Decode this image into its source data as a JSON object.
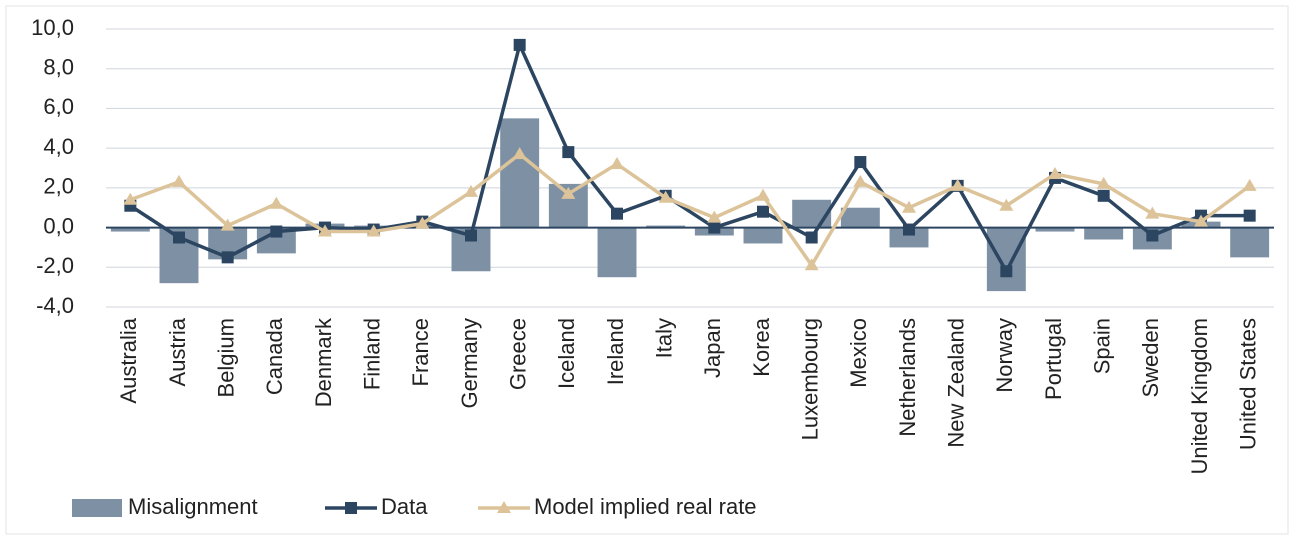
{
  "chart_data": {
    "type": "bar-line",
    "categories": [
      "Australia",
      "Austria",
      "Belgium",
      "Canada",
      "Denmark",
      "Finland",
      "France",
      "Germany",
      "Greece",
      "Iceland",
      "Ireland",
      "Italy",
      "Japan",
      "Korea",
      "Luxembourg",
      "Mexico",
      "Netherlands",
      "New Zealand",
      "Norway",
      "Portugal",
      "Spain",
      "Sweden",
      "United Kingdom",
      "United States"
    ],
    "series": [
      {
        "name": "Misalignment",
        "type": "bar",
        "color": "#7d90a4",
        "values": [
          -0.2,
          -2.8,
          -1.6,
          -1.3,
          0.2,
          0.1,
          0.1,
          -2.2,
          5.5,
          2.2,
          -2.5,
          0.1,
          -0.4,
          -0.8,
          1.4,
          1.0,
          -1.0,
          0.0,
          -3.2,
          -0.2,
          -0.6,
          -1.1,
          0.3,
          -1.5
        ]
      },
      {
        "name": "Data",
        "type": "line",
        "marker": "square",
        "color": "#2c4560",
        "values": [
          1.1,
          -0.5,
          -1.5,
          -0.2,
          0.0,
          -0.1,
          0.3,
          -0.4,
          9.2,
          3.8,
          0.7,
          1.6,
          0.0,
          0.8,
          -0.5,
          3.3,
          -0.1,
          2.1,
          -2.2,
          2.5,
          1.6,
          -0.4,
          0.6,
          0.6
        ]
      },
      {
        "name": "Model implied real rate",
        "type": "line",
        "marker": "triangle",
        "color": "#dcc399",
        "values": [
          1.4,
          2.3,
          0.1,
          1.2,
          -0.2,
          -0.2,
          0.2,
          1.8,
          3.7,
          1.7,
          3.2,
          1.5,
          0.5,
          1.6,
          -1.9,
          2.3,
          1.0,
          2.1,
          1.1,
          2.7,
          2.2,
          0.7,
          0.3,
          2.1
        ]
      }
    ],
    "ylim": [
      -4,
      10
    ],
    "yticks": [
      {
        "value": -4,
        "label": "-4,0"
      },
      {
        "value": -2,
        "label": "-2,0"
      },
      {
        "value": 0,
        "label": "0,0"
      },
      {
        "value": 2,
        "label": "2,0"
      },
      {
        "value": 4,
        "label": "4,0"
      },
      {
        "value": 6,
        "label": "6,0"
      },
      {
        "value": 8,
        "label": "8,0"
      },
      {
        "value": 10,
        "label": "10,0"
      }
    ],
    "grid": true,
    "legend": "bottom"
  }
}
